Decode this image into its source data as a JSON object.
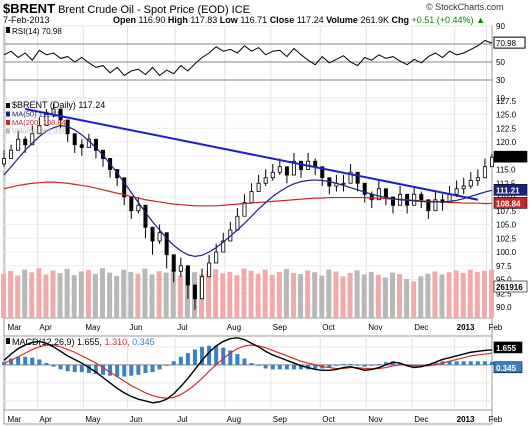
{
  "header": {
    "symbol": "$BRENT",
    "name": "Brent Crude Oil - Spot Price (EOD) ICE",
    "date": "7-Feb-2013",
    "open_label": "Open",
    "open": "116.90",
    "high_label": "High",
    "high": "117.83",
    "low_label": "Low",
    "low": "116.71",
    "close_label": "Close",
    "close": "117.24",
    "volume_label": "Volume",
    "volume": "261.9K",
    "chg_label": "Chg",
    "chg": "+0.51 (+0.44%)",
    "chg_arrow": "▲",
    "credit": "© StockCharts.com"
  },
  "colors": {
    "price_up": "#000000",
    "ma50": "#1a237e",
    "ma200": "#c62828",
    "trendline": "#1f1fc8",
    "volume_up": "#f0aaaa",
    "volume_down": "#b8b8b8",
    "macd": "#000000",
    "signal": "#d32f2f",
    "histogram": "#3b7fc4",
    "rsi_fill": "#a07070",
    "highlight_bg": "#000000"
  },
  "chart_data": [
    {
      "panel": "rsi",
      "type": "line",
      "legend": "RSI(14) 70.98",
      "last": "70.98",
      "ylim": [
        10,
        90
      ],
      "ticks": [
        "90",
        "70",
        "50",
        "30",
        "10"
      ],
      "reference_levels": [
        70,
        50,
        30
      ],
      "x": [
        0,
        4,
        8,
        12,
        16,
        20,
        24,
        28,
        32,
        36,
        40,
        44,
        48,
        52,
        56,
        60,
        64,
        68,
        72,
        76,
        80,
        84,
        88,
        92,
        96,
        100,
        104,
        108,
        112,
        116,
        120,
        124,
        128,
        132,
        136,
        140,
        144,
        148,
        152,
        156,
        160,
        164,
        168,
        172,
        176,
        180,
        184,
        188,
        192,
        196,
        200,
        204,
        208,
        212,
        216,
        220,
        224,
        228,
        232,
        236,
        240,
        244,
        248,
        252,
        256,
        260,
        264,
        268,
        272,
        276
      ],
      "values": [
        58,
        62,
        55,
        60,
        52,
        63,
        58,
        60,
        54,
        56,
        50,
        55,
        49,
        44,
        46,
        38,
        44,
        35,
        40,
        42,
        36,
        44,
        35,
        41,
        37,
        46,
        40,
        48,
        55,
        60,
        67,
        62,
        64,
        60,
        68,
        62,
        66,
        58,
        62,
        63,
        56,
        65,
        58,
        52,
        47,
        56,
        49,
        53,
        57,
        50,
        46,
        55,
        52,
        58,
        54,
        56,
        51,
        47,
        53,
        49,
        56,
        60,
        55,
        62,
        58,
        60,
        64,
        68,
        74,
        71
      ]
    },
    {
      "panel": "price",
      "type": "candlestick",
      "title": "$BRENT (Daily) 117.24",
      "legend": [
        {
          "name": "$BRENT (Daily)",
          "value": "117.24"
        },
        {
          "name": "MA(50)",
          "value": "111.21"
        },
        {
          "name": "MA(200)",
          "value": "108.84"
        },
        {
          "name": "Volume",
          "value": "261,916"
        }
      ],
      "ylim": [
        88,
        128
      ],
      "ticks": [
        "127.5",
        "125.0",
        "122.5",
        "120.0",
        "117.5",
        "115.0",
        "112.5",
        "110.0",
        "107.5",
        "105.0",
        "102.5",
        "100.0",
        "97.5",
        "95.0",
        "92.5",
        "90.0"
      ],
      "right_labels": [
        "117.24",
        "111.21",
        "108.84",
        "261916"
      ],
      "x": [
        0,
        4,
        8,
        12,
        16,
        20,
        24,
        28,
        32,
        36,
        40,
        44,
        48,
        52,
        56,
        60,
        64,
        68,
        72,
        76,
        80,
        84,
        88,
        92,
        96,
        100,
        104,
        108,
        112,
        116,
        120,
        124,
        128,
        132,
        136,
        140,
        144,
        148,
        152,
        156,
        160,
        164,
        168,
        172,
        176,
        180,
        184,
        188,
        192,
        196,
        200,
        204,
        208,
        212,
        216,
        220,
        224,
        228,
        232,
        236,
        240,
        244,
        248,
        252,
        256,
        260,
        264,
        268,
        272,
        276
      ],
      "close": [
        117,
        118.5,
        120.5,
        119.5,
        121.5,
        123,
        125,
        126,
        124,
        121.5,
        119.5,
        119,
        120.5,
        118.5,
        117,
        115,
        113.5,
        110,
        107.5,
        108.5,
        104.5,
        102,
        103.5,
        99.5,
        96.5,
        97.5,
        94,
        91.5,
        95.5,
        98,
        100,
        102,
        104,
        106.5,
        109,
        111,
        112.5,
        113.5,
        114.5,
        115.5,
        114,
        116.5,
        115,
        116.5,
        115.5,
        113.5,
        112,
        112.5,
        112.5,
        114.5,
        112.5,
        110.5,
        109.5,
        111.5,
        110,
        108.5,
        110.5,
        108.5,
        110.5,
        109.5,
        107.5,
        109.5,
        109,
        110.5,
        111.5,
        112,
        113,
        113.5,
        115.5,
        117.24
      ],
      "high": [
        118.5,
        119.5,
        122,
        121,
        123,
        124.5,
        126,
        127,
        125.5,
        123,
        121,
        120.5,
        121.5,
        120,
        118.5,
        116.5,
        115,
        111.5,
        109,
        110,
        106,
        103.5,
        105,
        101.5,
        98,
        99,
        96,
        93,
        97,
        99.5,
        101.5,
        103.5,
        105.5,
        108,
        110.5,
        112.5,
        114,
        115,
        116,
        117,
        115.5,
        118,
        116.5,
        118,
        117,
        115,
        113.5,
        114,
        114,
        116,
        114,
        112,
        111,
        113,
        111.5,
        110,
        112,
        110,
        112,
        111,
        109,
        111,
        110.5,
        112,
        113,
        113.5,
        114.5,
        115,
        117,
        117.83
      ],
      "low": [
        115.5,
        117,
        119,
        118,
        120,
        121.5,
        123.5,
        124.5,
        122.5,
        120,
        118,
        117.5,
        119,
        117,
        115.5,
        113.5,
        112,
        108.5,
        106,
        107,
        102.5,
        99.5,
        101.5,
        97,
        94.5,
        95.5,
        91.5,
        89.5,
        93.5,
        96.5,
        98.5,
        100.5,
        102.5,
        105,
        107.5,
        109.5,
        111,
        112,
        113,
        114,
        112.5,
        115,
        113.5,
        115,
        114,
        112,
        110.5,
        111,
        111,
        113,
        111,
        109,
        108,
        110,
        108.5,
        107,
        109,
        107,
        109,
        108,
        106,
        108,
        107.5,
        109,
        110,
        110.5,
        111.5,
        112,
        114,
        116.71
      ],
      "ma50": [
        114,
        115.5,
        117,
        118.5,
        119.8,
        121,
        122,
        122.6,
        123,
        122.8,
        122.2,
        121.3,
        120.2,
        119,
        117.6,
        116,
        114.4,
        112.6,
        110.8,
        109,
        107.2,
        105.5,
        104,
        102.5,
        101.2,
        100.2,
        99.5,
        99.2,
        99.4,
        100,
        100.8,
        101.8,
        102.9,
        104,
        105.2,
        106.5,
        107.8,
        109,
        110.1,
        111,
        111.8,
        112.4,
        112.8,
        113,
        113.1,
        113,
        112.8,
        112.5,
        112.1,
        111.7,
        111.3,
        110.9,
        110.5,
        110.2,
        109.9,
        109.7,
        109.5,
        109.4,
        109.3,
        109.2,
        109.1,
        109.1,
        109.1,
        109.2,
        109.4,
        109.7,
        110.1,
        110.5,
        110.9,
        111.21
      ],
      "ma200": [
        111.5,
        111.8,
        112.1,
        112.3,
        112.5,
        112.6,
        112.7,
        112.7,
        112.6,
        112.5,
        112.3,
        112.1,
        111.9,
        111.6,
        111.3,
        111,
        110.7,
        110.4,
        110.1,
        109.8,
        109.5,
        109.3,
        109.1,
        108.9,
        108.7,
        108.6,
        108.5,
        108.4,
        108.4,
        108.4,
        108.4,
        108.5,
        108.6,
        108.7,
        108.8,
        108.9,
        109,
        109.1,
        109.2,
        109.3,
        109.4,
        109.5,
        109.6,
        109.7,
        109.8,
        109.8,
        109.9,
        109.9,
        109.9,
        109.9,
        109.9,
        109.9,
        109.8,
        109.8,
        109.7,
        109.6,
        109.6,
        109.5,
        109.4,
        109.3,
        109.2,
        109.2,
        109.1,
        109,
        109,
        108.9,
        108.9,
        108.9,
        108.8,
        108.84
      ],
      "trendline": {
        "x": [
          12,
          268
        ],
        "y": [
          126,
          109.5
        ]
      }
    },
    {
      "panel": "volume",
      "type": "bar",
      "x": [
        0,
        4,
        8,
        12,
        16,
        20,
        24,
        28,
        32,
        36,
        40,
        44,
        48,
        52,
        56,
        60,
        64,
        68,
        72,
        76,
        80,
        84,
        88,
        92,
        96,
        100,
        104,
        108,
        112,
        116,
        120,
        124,
        128,
        132,
        136,
        140,
        144,
        148,
        152,
        156,
        160,
        164,
        168,
        172,
        176,
        180,
        184,
        188,
        192,
        196,
        200,
        204,
        208,
        212,
        216,
        220,
        224,
        228,
        232,
        236,
        240,
        244,
        248,
        252,
        256,
        260,
        264,
        268,
        272,
        276
      ],
      "values": [
        240,
        255,
        230,
        262,
        248,
        270,
        236,
        258,
        244,
        266,
        232,
        252,
        260,
        238,
        270,
        246,
        228,
        262,
        250,
        240,
        268,
        236,
        254,
        246,
        262,
        230,
        270,
        248,
        236,
        258,
        264,
        242,
        250,
        232,
        268,
        256,
        240,
        262,
        234,
        250,
        266,
        244,
        238,
        258,
        248,
        230,
        262,
        252,
        226,
        244,
        258,
        236,
        250,
        234,
        220,
        246,
        238,
        212,
        198,
        226,
        240,
        252,
        236,
        248,
        258,
        244,
        262,
        250,
        256,
        262
      ],
      "ylim": [
        0,
        420
      ]
    },
    {
      "panel": "macd",
      "type": "line",
      "legend_prefix": "MACD(12,26,9)",
      "legend_values": [
        "1.655",
        "1.310",
        "0.345"
      ],
      "right_labels": [
        "1.655",
        "0.345"
      ],
      "ylim": [
        -5,
        3.2
      ],
      "x": [
        0,
        4,
        8,
        12,
        16,
        20,
        24,
        28,
        32,
        36,
        40,
        44,
        48,
        52,
        56,
        60,
        64,
        68,
        72,
        76,
        80,
        84,
        88,
        92,
        96,
        100,
        104,
        108,
        112,
        116,
        120,
        124,
        128,
        132,
        136,
        140,
        144,
        148,
        152,
        156,
        160,
        164,
        168,
        172,
        176,
        180,
        184,
        188,
        192,
        196,
        200,
        204,
        208,
        212,
        216,
        220,
        224,
        228,
        232,
        236,
        240,
        244,
        248,
        252,
        256,
        260,
        264,
        268,
        272,
        276
      ],
      "macd": [
        0.5,
        1.2,
        1.8,
        2.2,
        2.5,
        2.6,
        2.4,
        2,
        1.5,
        1,
        0.6,
        0.2,
        -0.3,
        -0.8,
        -1.4,
        -2,
        -2.6,
        -3.1,
        -3.5,
        -3.8,
        -4,
        -4.2,
        -4.1,
        -3.8,
        -3.2,
        -2.4,
        -1.5,
        -0.5,
        0.5,
        1.4,
        2.1,
        2.6,
        2.9,
        3,
        2.8,
        2.4,
        2,
        1.5,
        1.1,
        0.8,
        0.5,
        0.2,
        -0.1,
        -0.3,
        -0.5,
        -0.6,
        -0.6,
        -0.5,
        -0.3,
        -0.2,
        -0.4,
        -0.6,
        -0.5,
        -0.3,
        0,
        0.3,
        0.2,
        -0.1,
        -0.3,
        -0.2,
        0,
        0.3,
        0.6,
        0.8,
        1,
        1.2,
        1.4,
        1.5,
        1.6,
        1.655
      ],
      "signal": [
        0.2,
        0.5,
        0.9,
        1.3,
        1.7,
        2,
        2.2,
        2.2,
        2,
        1.7,
        1.4,
        1,
        0.6,
        0.2,
        -0.3,
        -0.8,
        -1.3,
        -1.8,
        -2.3,
        -2.7,
        -3.1,
        -3.4,
        -3.6,
        -3.7,
        -3.6,
        -3.3,
        -2.8,
        -2.2,
        -1.5,
        -0.7,
        0,
        0.7,
        1.3,
        1.8,
        2.1,
        2.2,
        2.1,
        1.9,
        1.6,
        1.3,
        1,
        0.7,
        0.4,
        0.2,
        0,
        -0.2,
        -0.3,
        -0.4,
        -0.4,
        -0.3,
        -0.3,
        -0.4,
        -0.4,
        -0.4,
        -0.3,
        -0.1,
        0,
        0,
        -0.1,
        -0.1,
        -0.1,
        0,
        0.2,
        0.4,
        0.6,
        0.8,
        1,
        1.1,
        1.2,
        1.31
      ]
    }
  ],
  "x_axis": {
    "labels": [
      {
        "text": "Mar",
        "x": 2
      },
      {
        "text": "Apr",
        "x": 20
      },
      {
        "text": "May",
        "x": 46
      },
      {
        "text": "Jun",
        "x": 71
      },
      {
        "text": "Jul",
        "x": 98
      },
      {
        "text": "Aug",
        "x": 126
      },
      {
        "text": "Sep",
        "x": 152
      },
      {
        "text": "Oct",
        "x": 180
      },
      {
        "text": "Nov",
        "x": 206
      },
      {
        "text": "Dec",
        "x": 232
      },
      {
        "text": "2013",
        "x": 256,
        "bold": true
      },
      {
        "text": "Feb",
        "x": 274
      }
    ]
  }
}
